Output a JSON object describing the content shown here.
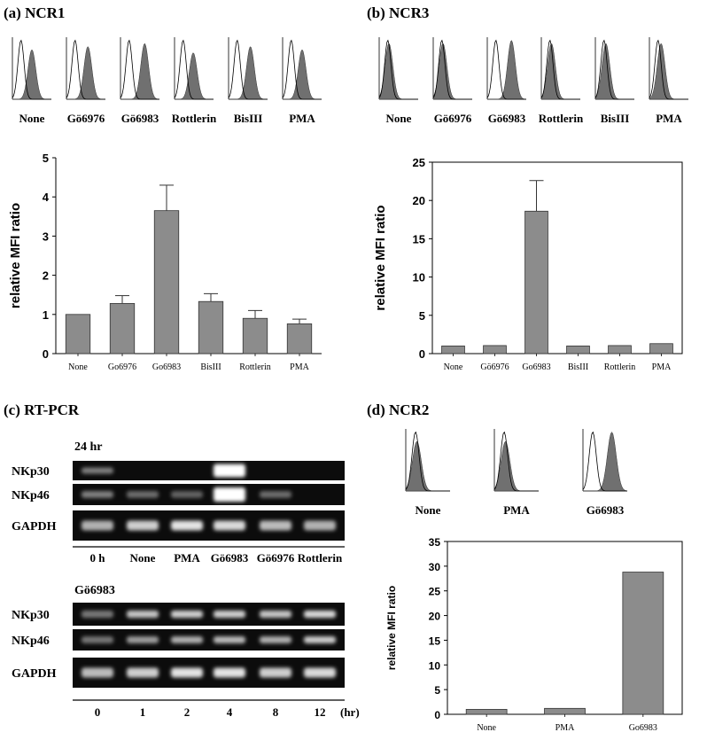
{
  "panels": {
    "a": {
      "label": "(a) NCR1"
    },
    "b": {
      "label": "(b) NCR3"
    },
    "c": {
      "label": "(c) RT-PCR"
    },
    "d": {
      "label": "(d) NCR2"
    }
  },
  "histograms": {
    "ncr1": [
      "None",
      "Gö6976",
      "Gö6983",
      "Rottlerin",
      "BisIII",
      "PMA"
    ],
    "ncr3": [
      "None",
      "Gö6976",
      "Gö6983",
      "Rottlerin",
      "BisIII",
      "PMA"
    ],
    "ncr2": [
      "None",
      "PMA",
      "Gö6983"
    ]
  },
  "gel": {
    "block1": {
      "title": "24 hr",
      "rows": [
        "NKp30",
        "NKp46",
        "GAPDH"
      ],
      "lanes": [
        "0 h",
        "None",
        "PMA",
        "Gö6983",
        "Gö6976",
        "Rottlerin"
      ]
    },
    "block2": {
      "title": "Gö6983",
      "rows": [
        "NKp30",
        "NKp46",
        "GAPDH"
      ],
      "lanes": [
        "0",
        "1",
        "2",
        "4",
        "8",
        "12"
      ],
      "unit": "(hr)"
    }
  },
  "chart_data": [
    {
      "id": "ncr1",
      "type": "bar",
      "categories": [
        "None",
        "Go6976",
        "Go6983",
        "BisIII",
        "Rottlerin",
        "PMA"
      ],
      "values": [
        1.0,
        1.28,
        3.65,
        1.33,
        0.9,
        0.76
      ],
      "errors": [
        0,
        0.2,
        0.65,
        0.2,
        0.2,
        0.12
      ],
      "ylabel": "relative MFI ratio",
      "ylim": [
        0,
        5
      ],
      "yticks": [
        0,
        1,
        2,
        3,
        4,
        5
      ],
      "bar_color": "#8c8c8c"
    },
    {
      "id": "ncr3",
      "type": "bar",
      "categories": [
        "None",
        "Gö6976",
        "Go6983",
        "BisIII",
        "Rottlerin",
        "PMA"
      ],
      "values": [
        1.0,
        1.05,
        18.6,
        1.0,
        1.05,
        1.3
      ],
      "errors": [
        0,
        0,
        4.0,
        0,
        0,
        0
      ],
      "ylabel": "relative MFI ratio",
      "ylim": [
        0,
        25
      ],
      "yticks": [
        0,
        5,
        10,
        15,
        20,
        25
      ],
      "bar_color": "#8c8c8c"
    },
    {
      "id": "ncr2",
      "type": "bar",
      "categories": [
        "None",
        "PMA",
        "Go6983"
      ],
      "values": [
        1.0,
        1.2,
        28.8
      ],
      "errors": [
        0,
        0,
        0
      ],
      "ylabel": "relative MFI ratio",
      "ylim": [
        0,
        35
      ],
      "yticks": [
        0,
        5,
        10,
        15,
        20,
        25,
        30,
        35
      ],
      "bar_color": "#8c8c8c"
    }
  ]
}
